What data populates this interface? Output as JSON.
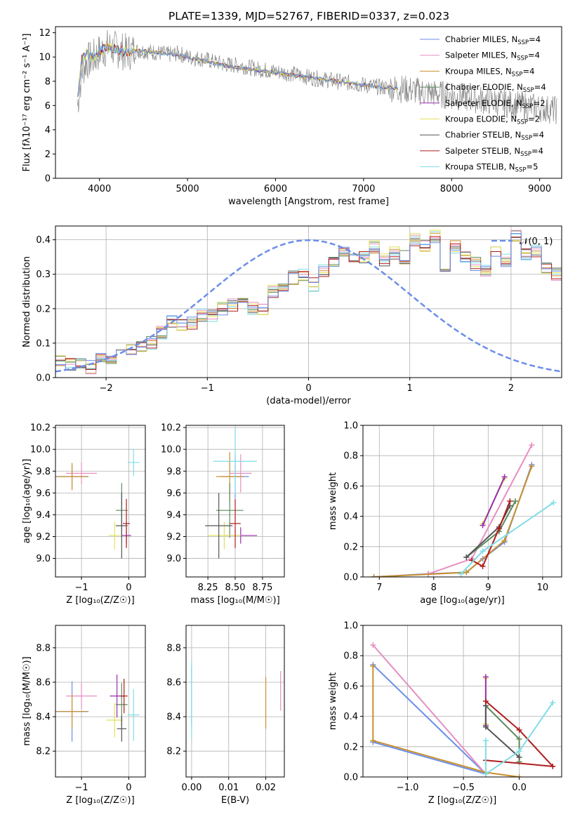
{
  "title": "PLATE=1339, MJD=52767, FIBERID=0337, z=0.023",
  "colors": [
    "#6b8ee8",
    "#e68fc2",
    "#c9902e",
    "#5c8a5c",
    "#9a2fb0",
    "#e0e05a",
    "#555555",
    "#b01c1c",
    "#7fdde6"
  ],
  "chart_data": [
    {
      "id": "spectrum",
      "type": "line",
      "title": "PLATE=1339, MJD=52767, FIBERID=0337, z=0.023",
      "xlabel": "wavelength [Angstrom, rest frame]",
      "ylabel": "Flux [fλ10⁻¹⁷ erg cm⁻² s⁻¹ A⁻¹]",
      "xlim": [
        3500,
        9250
      ],
      "ylim": [
        0,
        12.5
      ],
      "xticks": [
        4000,
        5000,
        6000,
        7000,
        8000,
        9000
      ],
      "yticks": [
        0,
        2,
        4,
        6,
        8,
        10,
        12
      ],
      "grid": false,
      "legend_position": "top-right",
      "legend": [
        "Chabrier MILES, N_SSP=4",
        "Salpeter MILES, N_SSP=4",
        "Kroupa MILES, N_SSP=4",
        "Chabrier ELODIE, N_SSP=4",
        "Salpeter ELODIE, N_SSP=2",
        "Kroupa ELODIE, N_SSP=2",
        "Chabrier STELIB, N_SSP=4",
        "Salpeter STELIB, N_SSP=4",
        "Kroupa STELIB, N_SSP=5"
      ],
      "data_x": [
        3750,
        3800,
        3850,
        3900,
        3950,
        4000,
        4100,
        4200,
        4300,
        4400,
        4500,
        4600,
        4700,
        4800,
        4900,
        5000,
        5200,
        5400,
        5600,
        5800,
        6000,
        6200,
        6400,
        6600,
        6800,
        7000,
        7200,
        7400,
        7600,
        7800,
        8000,
        8200,
        8400,
        8600,
        8800,
        9000,
        9200
      ],
      "data_y": [
        6.0,
        8.8,
        9.6,
        9.8,
        10.0,
        10.4,
        10.8,
        10.6,
        10.4,
        10.5,
        10.5,
        10.4,
        10.3,
        10.2,
        10.3,
        10.0,
        9.8,
        9.4,
        9.3,
        9.0,
        8.8,
        8.6,
        8.3,
        8.1,
        7.9,
        7.7,
        7.5,
        7.4,
        7.2,
        7.0,
        6.8,
        6.6,
        6.4,
        6.2,
        6.0,
        5.8,
        5.6
      ],
      "model_x": [
        3750,
        3800,
        3850,
        3900,
        3950,
        4000,
        4100,
        4200,
        4300,
        4400,
        4500,
        4600,
        4700,
        4800,
        4900,
        5000,
        5200,
        5400,
        5600,
        5800,
        6000,
        6200,
        6400,
        6600,
        6800,
        7000,
        7200,
        7400
      ],
      "model_y": [
        6.5,
        9.8,
        10.3,
        10.0,
        10.1,
        10.5,
        10.8,
        10.6,
        10.4,
        10.5,
        10.5,
        10.4,
        10.3,
        10.2,
        10.2,
        10.0,
        9.7,
        9.3,
        9.1,
        8.9,
        8.7,
        8.5,
        8.3,
        8.1,
        7.9,
        7.7,
        7.5,
        7.4
      ]
    },
    {
      "id": "residuals",
      "type": "histogram",
      "xlabel": "(data-model)/error",
      "ylabel": "Normed distribution",
      "xlim": [
        -2.5,
        2.5
      ],
      "ylim": [
        0,
        0.44
      ],
      "xticks": [
        -2,
        -1,
        0,
        1,
        2
      ],
      "yticks": [
        0.0,
        0.1,
        0.2,
        0.3,
        0.4
      ],
      "grid": true,
      "legend_position": "top-right",
      "legend": [
        "𝒩(0, 1)"
      ],
      "bin_width": 0.1,
      "hist_values": [
        0.05,
        0.04,
        0.04,
        0.03,
        0.06,
        0.06,
        0.07,
        0.08,
        0.09,
        0.1,
        0.13,
        0.16,
        0.15,
        0.16,
        0.18,
        0.18,
        0.2,
        0.21,
        0.22,
        0.2,
        0.2,
        0.25,
        0.27,
        0.29,
        0.3,
        0.27,
        0.31,
        0.33,
        0.36,
        0.34,
        0.35,
        0.38,
        0.34,
        0.36,
        0.35,
        0.4,
        0.38,
        0.41,
        0.32,
        0.38,
        0.35,
        0.33,
        0.31,
        0.37,
        0.34,
        0.41,
        0.36,
        0.37,
        0.32,
        0.3,
        0.35,
        0.31,
        0.28,
        0.25,
        0.24,
        0.22,
        0.21,
        0.2,
        0.18,
        0.17,
        0.16,
        0.14,
        0.13,
        0.12,
        0.1,
        0.1,
        0.09,
        0.08,
        0.08,
        0.07,
        0.07,
        0.06,
        0.06,
        0.05,
        0.05,
        0.05,
        0.04,
        0.04,
        0.04,
        0.03
      ]
    },
    {
      "id": "z-age",
      "type": "scatter",
      "xlabel": "Z [log₁₀(Z/Z☉)]",
      "ylabel": "age  [log₁₀(age/yr)]",
      "xlim": [
        -1.55,
        0.35
      ],
      "ylim": [
        8.83,
        10.22
      ],
      "xticks": [
        -1,
        0
      ],
      "yticks": [
        9.0,
        9.2,
        9.4,
        9.6,
        9.8,
        10.0,
        10.2
      ],
      "grid": true
    },
    {
      "id": "mass-age",
      "type": "scatter",
      "xlabel": "mass [log₁₀(M/M☉)]",
      "ylabel": "",
      "xlim": [
        8.05,
        8.95
      ],
      "ylim": [
        8.83,
        10.22
      ],
      "xticks": [
        8.25,
        8.5,
        8.75
      ],
      "yticks": [
        9.0,
        9.2,
        9.4,
        9.6,
        9.8,
        10.0,
        10.2
      ],
      "grid": true
    },
    {
      "id": "age-weight",
      "type": "line",
      "xlabel": "age  [log₁₀(age/yr)]",
      "ylabel": "mass weight",
      "xlim": [
        6.7,
        10.35
      ],
      "ylim": [
        0,
        1
      ],
      "xticks": [
        7,
        8,
        9,
        10
      ],
      "yticks": [
        0.0,
        0.2,
        0.4,
        0.6,
        0.8,
        1.0
      ],
      "grid": true,
      "series": [
        {
          "x": [
            6.9,
            7.9,
            8.6,
            8.9,
            9.3,
            9.8
          ],
          "y": [
            0.0,
            0.02,
            0.03,
            0.12,
            0.23,
            0.74
          ]
        },
        {
          "x": [
            7.9,
            8.7,
            9.8
          ],
          "y": [
            0.02,
            0.12,
            0.87
          ]
        },
        {
          "x": [
            6.9,
            8.6,
            9.3,
            9.8
          ],
          "y": [
            0.0,
            0.03,
            0.24,
            0.73
          ]
        },
        {
          "x": [
            8.6,
            9.2,
            9.5
          ],
          "y": [
            0.13,
            0.3,
            0.5
          ]
        },
        {
          "x": [
            8.9,
            9.3
          ],
          "y": [
            0.34,
            0.66
          ]
        },
        {
          "x": [
            8.9,
            9.3
          ],
          "y": [
            0.35,
            0.65
          ]
        },
        {
          "x": [
            8.6,
            9.2,
            9.4
          ],
          "y": [
            0.13,
            0.33,
            0.47
          ]
        },
        {
          "x": [
            8.7,
            8.9,
            9.2,
            9.4
          ],
          "y": [
            0.11,
            0.07,
            0.32,
            0.5
          ]
        },
        {
          "x": [
            8.5,
            8.9,
            10.2
          ],
          "y": [
            0.02,
            0.17,
            0.49
          ]
        }
      ]
    },
    {
      "id": "z-mass",
      "type": "scatter",
      "xlabel": "Z [log₁₀(Z/Z☉)]",
      "ylabel": "mass [log₁₀(M/M☉)]",
      "xlim": [
        -1.55,
        0.35
      ],
      "ylim": [
        8.05,
        8.93
      ],
      "xticks": [
        -1,
        0
      ],
      "yticks": [
        8.2,
        8.4,
        8.6,
        8.8
      ],
      "grid": true
    },
    {
      "id": "ebv-mass",
      "type": "scatter",
      "xlabel": "E(B-V)",
      "ylabel": "",
      "xlim": [
        -0.0015,
        0.025
      ],
      "ylim": [
        8.05,
        8.93
      ],
      "xticks": [
        0.0,
        0.01,
        0.02
      ],
      "yticks": [
        8.2,
        8.4,
        8.6,
        8.8
      ],
      "grid": true
    },
    {
      "id": "z-weight",
      "type": "line",
      "xlabel": "Z [log₁₀(Z/Z☉)]",
      "ylabel": "mass weight",
      "xlim": [
        -1.4,
        0.38
      ],
      "ylim": [
        0,
        1
      ],
      "xticks": [
        -1.0,
        -0.5,
        0.0
      ],
      "yticks": [
        0.0,
        0.2,
        0.4,
        0.6,
        0.8,
        1.0
      ],
      "grid": true,
      "series": [
        {
          "x": [
            -1.31,
            -0.3,
            -1.31
          ],
          "y": [
            0.74,
            0.02,
            0.23
          ]
        },
        {
          "x": [
            -1.31,
            -0.3
          ],
          "y": [
            0.87,
            0.02
          ]
        },
        {
          "x": [
            -1.31,
            -1.31,
            -0.3,
            0.0
          ],
          "y": [
            0.73,
            0.24,
            0.03,
            0.0
          ]
        },
        {
          "x": [
            -0.3,
            0.0,
            0.0
          ],
          "y": [
            0.47,
            0.25,
            0.1
          ]
        },
        {
          "x": [
            -0.3,
            -0.3
          ],
          "y": [
            0.66,
            0.34
          ]
        },
        {
          "x": [
            -0.3,
            -0.3
          ],
          "y": [
            0.65,
            0.35
          ]
        },
        {
          "x": [
            -0.3,
            -0.3,
            0.0
          ],
          "y": [
            0.47,
            0.33,
            0.13
          ]
        },
        {
          "x": [
            -0.3,
            0.0,
            0.3,
            -0.3
          ],
          "y": [
            0.5,
            0.31,
            0.07,
            0.11
          ]
        },
        {
          "x": [
            -0.3,
            -0.3,
            0.0,
            0.3
          ],
          "y": [
            0.24,
            0.02,
            0.17,
            0.49
          ]
        }
      ]
    }
  ],
  "crosses_z_age": [
    {
      "c": 0,
      "x": -1.2,
      "y": 9.75,
      "ex": 0.7,
      "ey": 0.22
    },
    {
      "c": 1,
      "x": -1.0,
      "y": 9.78,
      "ex": 0.65,
      "ey": 0.2
    },
    {
      "c": 2,
      "x": -1.2,
      "y": 9.75,
      "ex": 0.65,
      "ey": 0.25
    },
    {
      "c": 3,
      "x": -0.15,
      "y": 9.44,
      "ex": 0.25,
      "ey": 0.5
    },
    {
      "c": 4,
      "x": -0.05,
      "y": 9.21,
      "ex": 0.2,
      "ey": 0.15
    },
    {
      "c": 5,
      "x": -0.3,
      "y": 9.21,
      "ex": 0.25,
      "ey": 0.25
    },
    {
      "c": 6,
      "x": -0.15,
      "y": 9.3,
      "ex": 0.25,
      "ey": 0.6
    },
    {
      "c": 7,
      "x": -0.05,
      "y": 9.32,
      "ex": 0.15,
      "ey": 0.45
    },
    {
      "c": 8,
      "x": 0.1,
      "y": 9.88,
      "ex": 0.25,
      "ey": 0.25
    }
  ],
  "crosses_mass_age": [
    {
      "c": 0,
      "x": 8.5,
      "y": 9.75,
      "ex": 0.25,
      "ey": 0.4
    },
    {
      "c": 1,
      "x": 8.55,
      "y": 9.78,
      "ex": 0.2,
      "ey": 0.35
    },
    {
      "c": 2,
      "x": 8.45,
      "y": 9.75,
      "ex": 0.25,
      "ey": 0.45
    },
    {
      "c": 3,
      "x": 8.45,
      "y": 9.44,
      "ex": 0.25,
      "ey": 0.5
    },
    {
      "c": 4,
      "x": 8.55,
      "y": 9.21,
      "ex": 0.3,
      "ey": 0.15
    },
    {
      "c": 5,
      "x": 8.4,
      "y": 9.21,
      "ex": 0.3,
      "ey": 0.25
    },
    {
      "c": 6,
      "x": 8.35,
      "y": 9.3,
      "ex": 0.25,
      "ey": 0.6
    },
    {
      "c": 7,
      "x": 8.5,
      "y": 9.32,
      "ex": 0.1,
      "ey": 0.45
    },
    {
      "c": 8,
      "x": 8.5,
      "y": 9.89,
      "ex": 0.4,
      "ey": 0.6
    }
  ],
  "crosses_z_mass": [
    {
      "c": 0,
      "x": -1.2,
      "y": 8.43,
      "ex": 0.7,
      "ey": 0.35
    },
    {
      "c": 1,
      "x": -1.0,
      "y": 8.52,
      "ex": 0.65,
      "ey": 0.15
    },
    {
      "c": 2,
      "x": -1.2,
      "y": 8.43,
      "ex": 0.65,
      "ey": 0.2
    },
    {
      "c": 3,
      "x": -0.15,
      "y": 8.47,
      "ex": 0.25,
      "ey": 0.25
    },
    {
      "c": 4,
      "x": -0.25,
      "y": 8.52,
      "ex": 0.3,
      "ey": 0.25
    },
    {
      "c": 5,
      "x": -0.3,
      "y": 8.38,
      "ex": 0.35,
      "ey": 0.2
    },
    {
      "c": 6,
      "x": -0.15,
      "y": 8.33,
      "ex": 0.2,
      "ey": 0.15
    },
    {
      "c": 7,
      "x": -0.1,
      "y": 8.52,
      "ex": 0.15,
      "ey": 0.2
    },
    {
      "c": 8,
      "x": 0.1,
      "y": 8.41,
      "ex": 0.25,
      "ey": 0.3
    }
  ],
  "crosses_ebv_mass": [
    {
      "c": 0,
      "x": 0.0,
      "y": 8.52,
      "ex": 0,
      "ey": 0.35
    },
    {
      "c": 1,
      "x": 0.024,
      "y": 8.55,
      "ex": 0,
      "ey": 0.23
    },
    {
      "c": 2,
      "x": 0.02,
      "y": 8.48,
      "ex": 0,
      "ey": 0.3
    },
    {
      "c": 8,
      "x": 0.0,
      "y": 8.5,
      "ex": 0,
      "ey": 0.45
    }
  ]
}
